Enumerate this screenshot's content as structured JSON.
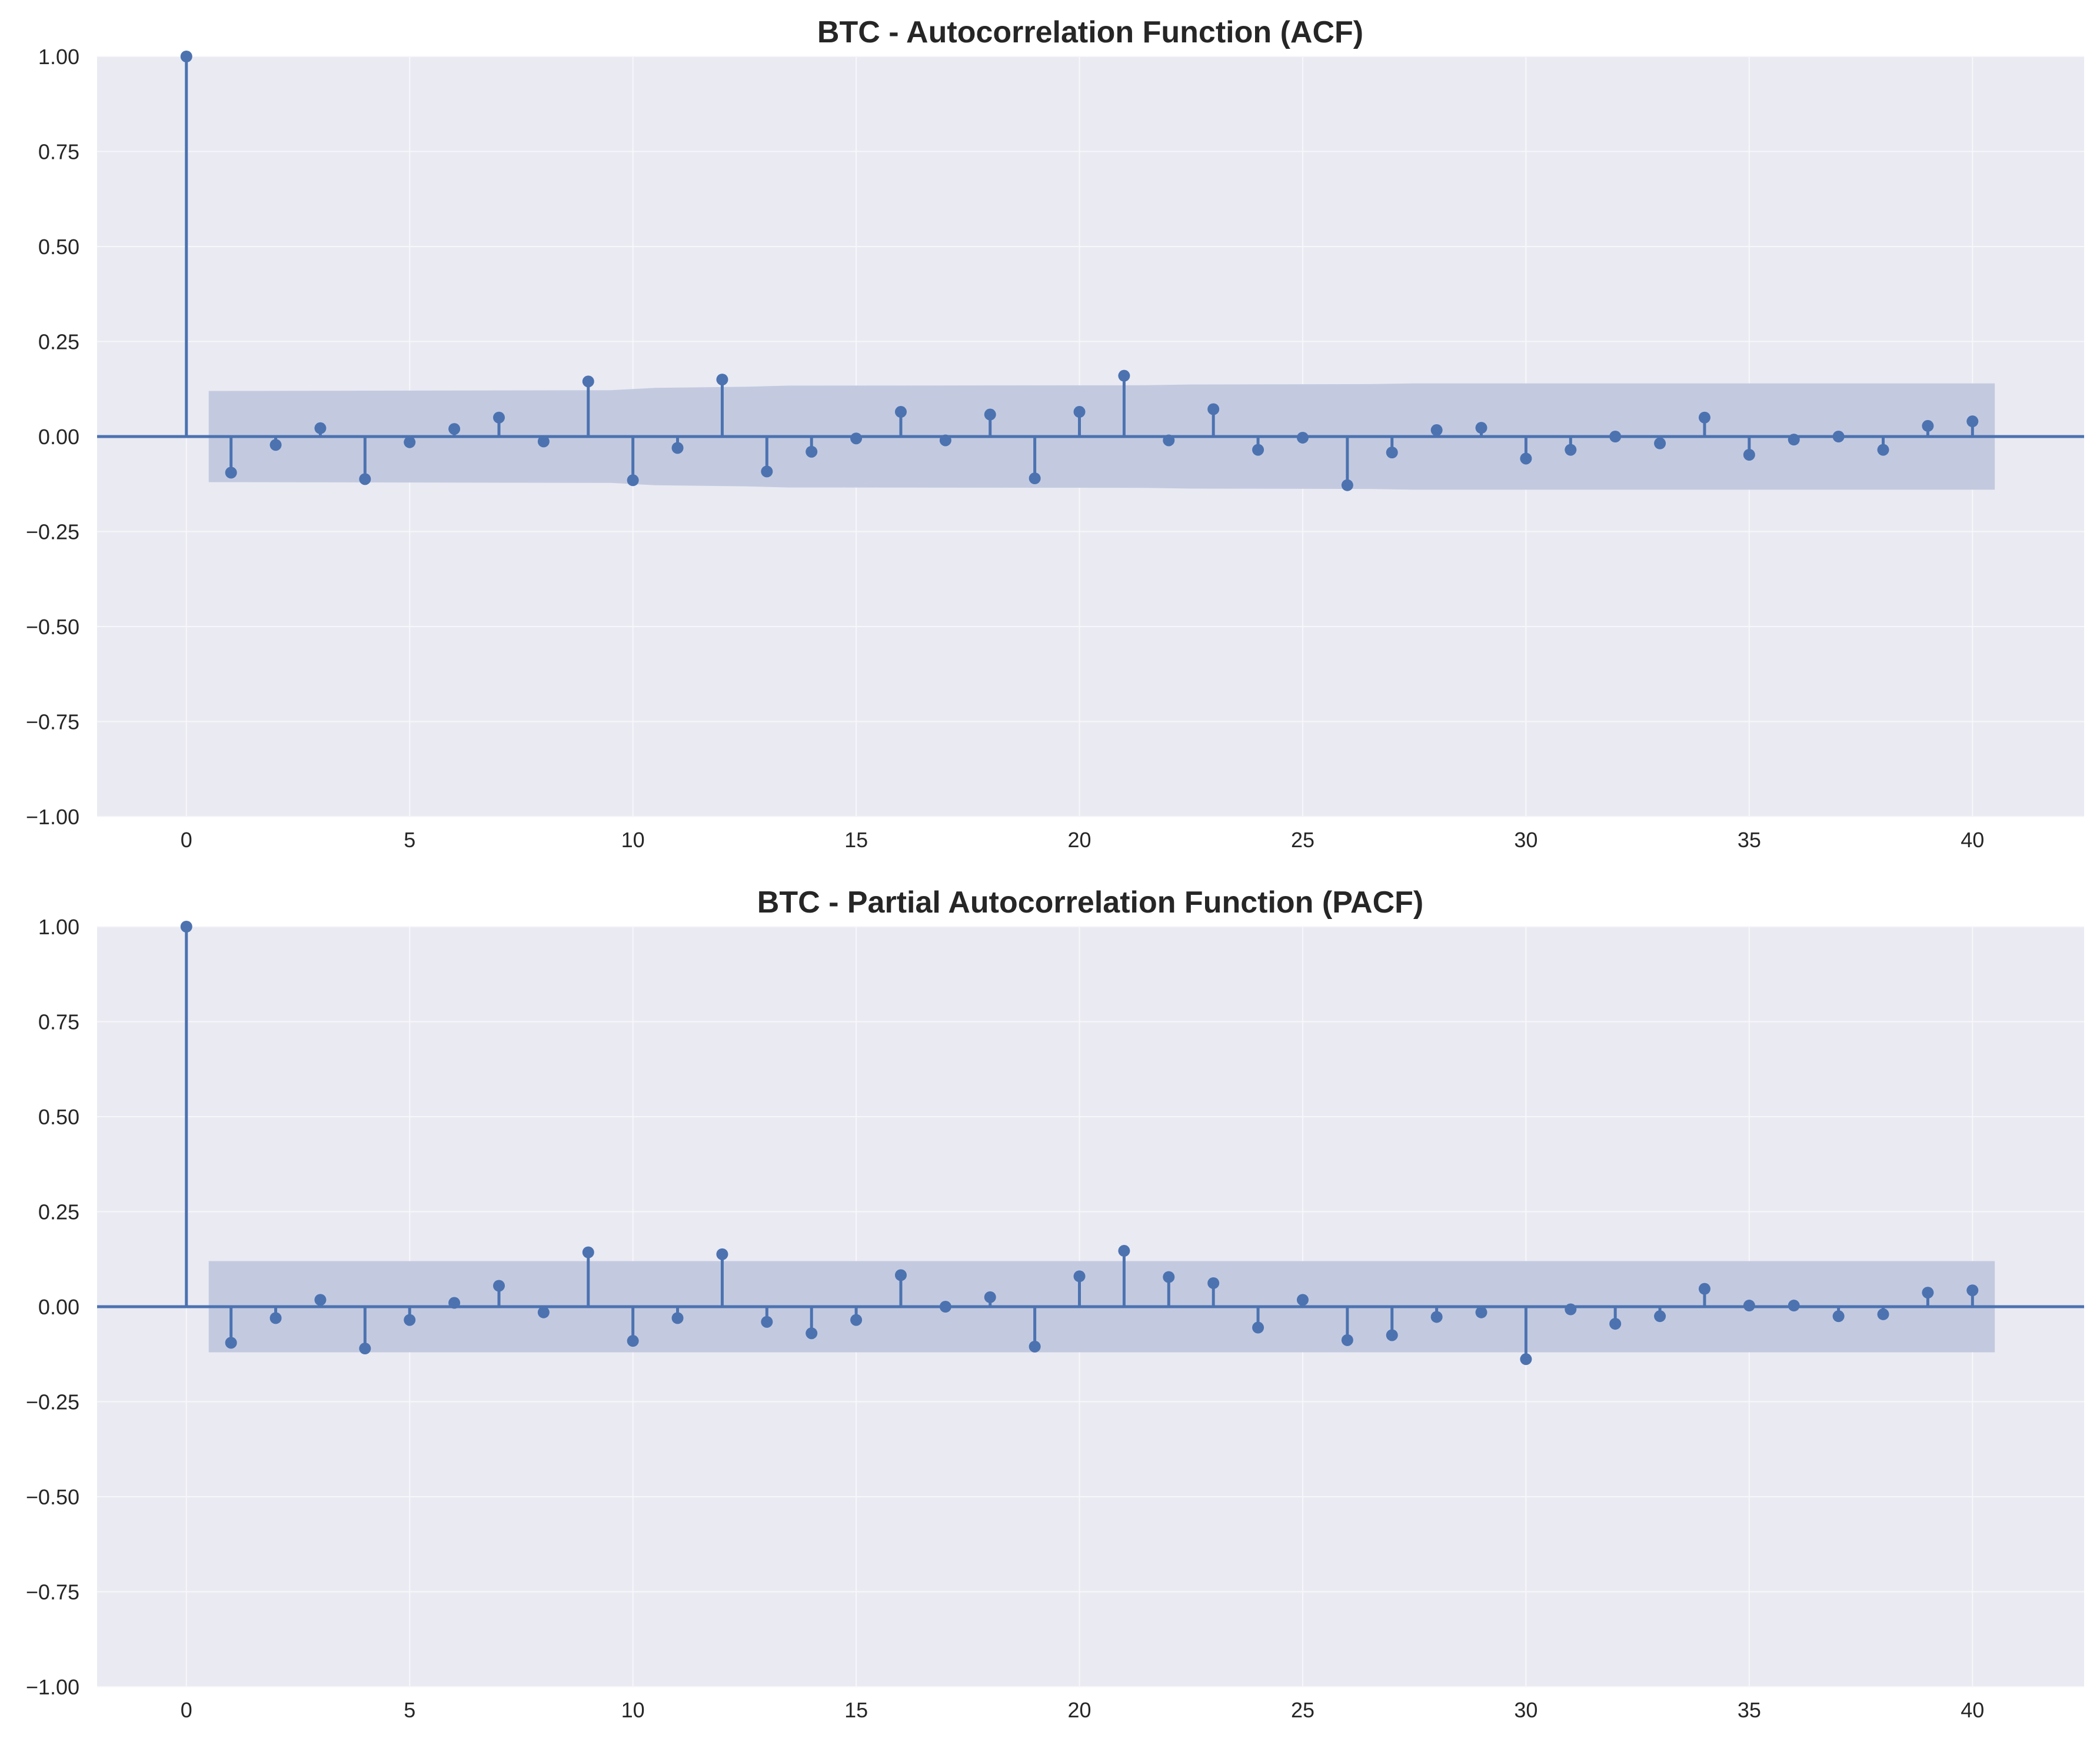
{
  "colors": {
    "background": "#ffffff",
    "panel": "#eaeaf2",
    "grid": "#f7f7fb",
    "stem": "#4c72b0",
    "confidence_band": "#c3cae0",
    "text": "#262626"
  },
  "chart_data": [
    {
      "type": "stem",
      "title": "BTC - Autocorrelation Function (ACF)",
      "xlabel": "",
      "ylabel": "",
      "xlim": [
        -2,
        42.5
      ],
      "ylim": [
        -1,
        1
      ],
      "xticks": [
        0,
        5,
        10,
        15,
        20,
        25,
        30,
        35,
        40
      ],
      "xtick_labels": [
        "0",
        "5",
        "10",
        "15",
        "20",
        "25",
        "30",
        "35",
        "40"
      ],
      "yticks": [
        1,
        0.75,
        0.5,
        0.25,
        0,
        -0.25,
        -0.5,
        -0.75,
        -1
      ],
      "ytick_labels": [
        "1.00",
        "0.75",
        "0.50",
        "0.25",
        "0.00",
        "−0.25",
        "−0.50",
        "−0.75",
        "−1.00"
      ],
      "grid": true,
      "lags": [
        0,
        1,
        2,
        3,
        4,
        5,
        6,
        7,
        8,
        9,
        10,
        11,
        12,
        13,
        14,
        15,
        16,
        17,
        18,
        19,
        20,
        21,
        22,
        23,
        24,
        25,
        26,
        27,
        28,
        29,
        30,
        31,
        32,
        33,
        34,
        35,
        36,
        37,
        38,
        39,
        40
      ],
      "values": [
        1.0,
        -0.095,
        -0.022,
        0.022,
        -0.112,
        -0.015,
        0.02,
        0.05,
        -0.013,
        0.145,
        -0.115,
        -0.03,
        0.15,
        -0.092,
        -0.04,
        -0.005,
        0.065,
        -0.01,
        0.058,
        -0.11,
        0.065,
        0.16,
        -0.01,
        0.072,
        -0.035,
        -0.003,
        -0.128,
        -0.042,
        0.017,
        0.023,
        -0.058,
        -0.035,
        0.0,
        -0.018,
        0.05,
        -0.048,
        -0.008,
        0.0,
        -0.035,
        0.028,
        0.04
      ],
      "confidence_band": {
        "x": [
          0.5,
          9.5,
          10.5,
          12.5,
          13.5,
          21.5,
          22.5,
          26.5,
          27.5,
          40.5
        ],
        "upper": [
          0.12,
          0.122,
          0.128,
          0.131,
          0.134,
          0.135,
          0.137,
          0.138,
          0.14,
          0.14
        ],
        "lower": [
          -0.12,
          -0.122,
          -0.128,
          -0.131,
          -0.134,
          -0.135,
          -0.137,
          -0.138,
          -0.14,
          -0.14
        ]
      }
    },
    {
      "type": "stem",
      "title": "BTC - Partial Autocorrelation Function (PACF)",
      "xlabel": "",
      "ylabel": "",
      "xlim": [
        -2,
        42.5
      ],
      "ylim": [
        -1,
        1
      ],
      "xticks": [
        0,
        5,
        10,
        15,
        20,
        25,
        30,
        35,
        40
      ],
      "xtick_labels": [
        "0",
        "5",
        "10",
        "15",
        "20",
        "25",
        "30",
        "35",
        "40"
      ],
      "yticks": [
        1,
        0.75,
        0.5,
        0.25,
        0,
        -0.25,
        -0.5,
        -0.75,
        -1
      ],
      "ytick_labels": [
        "1.00",
        "0.75",
        "0.50",
        "0.25",
        "0.00",
        "−0.25",
        "−0.50",
        "−0.75",
        "−1.00"
      ],
      "grid": true,
      "lags": [
        0,
        1,
        2,
        3,
        4,
        5,
        6,
        7,
        8,
        9,
        10,
        11,
        12,
        13,
        14,
        15,
        16,
        17,
        18,
        19,
        20,
        21,
        22,
        23,
        24,
        25,
        26,
        27,
        28,
        29,
        30,
        31,
        32,
        33,
        34,
        35,
        36,
        37,
        38,
        39,
        40
      ],
      "values": [
        1.0,
        -0.095,
        -0.03,
        0.018,
        -0.11,
        -0.035,
        0.01,
        0.055,
        -0.015,
        0.143,
        -0.09,
        -0.03,
        0.138,
        -0.04,
        -0.07,
        -0.035,
        0.083,
        0.0,
        0.025,
        -0.105,
        0.08,
        0.147,
        0.078,
        0.062,
        -0.055,
        0.018,
        -0.088,
        -0.075,
        -0.027,
        -0.015,
        -0.138,
        -0.007,
        -0.045,
        -0.025,
        0.047,
        0.003,
        0.003,
        -0.025,
        -0.02,
        0.037,
        0.043
      ],
      "confidence_band": {
        "x": [
          0.5,
          40.5
        ],
        "upper": [
          0.12,
          0.12
        ],
        "lower": [
          -0.12,
          -0.12
        ]
      }
    }
  ]
}
